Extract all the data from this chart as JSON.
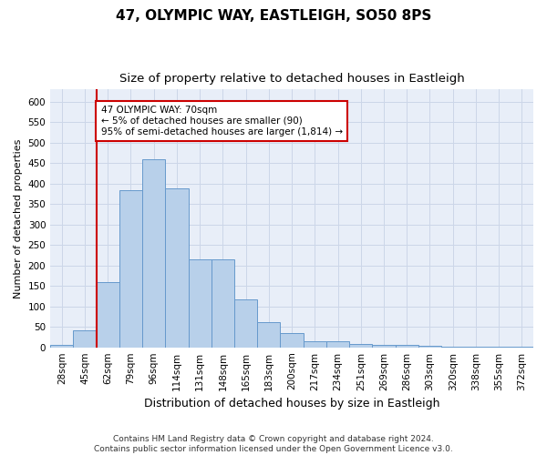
{
  "title": "47, OLYMPIC WAY, EASTLEIGH, SO50 8PS",
  "subtitle": "Size of property relative to detached houses in Eastleigh",
  "xlabel": "Distribution of detached houses by size in Eastleigh",
  "ylabel": "Number of detached properties",
  "categories": [
    "28sqm",
    "45sqm",
    "62sqm",
    "79sqm",
    "96sqm",
    "114sqm",
    "131sqm",
    "148sqm",
    "165sqm",
    "183sqm",
    "200sqm",
    "217sqm",
    "234sqm",
    "251sqm",
    "269sqm",
    "286sqm",
    "303sqm",
    "320sqm",
    "338sqm",
    "355sqm",
    "372sqm"
  ],
  "values": [
    5,
    42,
    160,
    385,
    460,
    388,
    215,
    215,
    118,
    62,
    35,
    14,
    14,
    9,
    5,
    5,
    3,
    2,
    2,
    2,
    2
  ],
  "bar_color": "#b8d0ea",
  "bar_edge_color": "#6699cc",
  "vline_color": "#cc0000",
  "annotation_text": "47 OLYMPIC WAY: 70sqm\n← 5% of detached houses are smaller (90)\n95% of semi-detached houses are larger (1,814) →",
  "annotation_box_facecolor": "#ffffff",
  "annotation_box_edge": "#cc0000",
  "ylim": [
    0,
    630
  ],
  "yticks": [
    0,
    50,
    100,
    150,
    200,
    250,
    300,
    350,
    400,
    450,
    500,
    550,
    600
  ],
  "footer_line1": "Contains HM Land Registry data © Crown copyright and database right 2024.",
  "footer_line2": "Contains public sector information licensed under the Open Government Licence v3.0.",
  "title_fontsize": 11,
  "subtitle_fontsize": 9.5,
  "xlabel_fontsize": 9,
  "ylabel_fontsize": 8,
  "tick_fontsize": 7.5,
  "annot_fontsize": 7.5,
  "footer_fontsize": 6.5,
  "grid_color": "#ccd6e8",
  "background_color": "#e8eef8"
}
